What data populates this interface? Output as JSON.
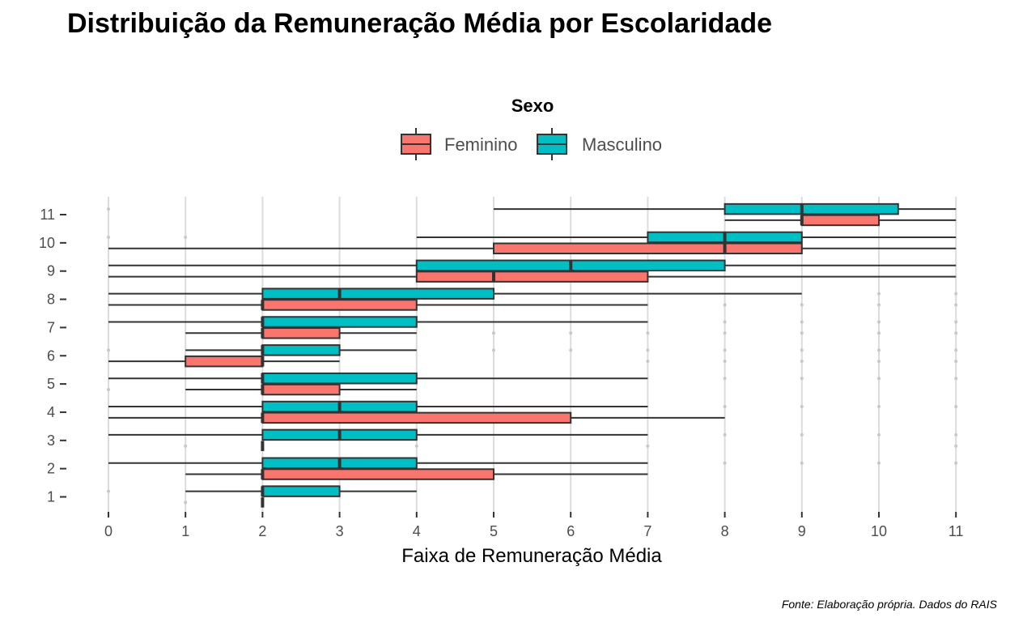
{
  "chart_data": {
    "type": "boxplot",
    "orientation": "horizontal",
    "title": "Distribuição da Remuneração Média por Escolaridade",
    "xlabel": "Faixa de Remuneração Média",
    "ylabel": "",
    "xlim": [
      0,
      11
    ],
    "x_ticks": [
      "0",
      "1",
      "2",
      "3",
      "4",
      "5",
      "6",
      "7",
      "8",
      "9",
      "10",
      "11"
    ],
    "categories": [
      "1",
      "2",
      "3",
      "4",
      "5",
      "6",
      "7",
      "8",
      "9",
      "10",
      "11"
    ],
    "legend": {
      "title": "Sexo",
      "position": "top"
    },
    "caption": "Fonte: Elaboração própria. Dados do RAIS",
    "grid": true,
    "series": [
      {
        "name": "Feminino",
        "color": "#F8766D",
        "boxes": [
          {
            "category": "1",
            "lower": 2,
            "q1": 2,
            "median": 2,
            "q3": 2,
            "upper": 2,
            "outliers": [
              1
            ]
          },
          {
            "category": "2",
            "lower": 1,
            "q1": 2,
            "median": 2,
            "q3": 5,
            "upper": 7,
            "outliers": []
          },
          {
            "category": "3",
            "lower": 2,
            "q1": 2,
            "median": 2,
            "q3": 2,
            "upper": 2,
            "outliers": [
              1,
              4,
              7,
              11
            ]
          },
          {
            "category": "4",
            "lower": 0,
            "q1": 2,
            "median": 2,
            "q3": 6,
            "upper": 8,
            "outliers": []
          },
          {
            "category": "5",
            "lower": 1,
            "q1": 2,
            "median": 2,
            "q3": 3,
            "upper": 4,
            "outliers": [
              0
            ]
          },
          {
            "category": "6",
            "lower": 0,
            "q1": 1,
            "median": 2,
            "q3": 2,
            "upper": 3,
            "outliers": [
              7,
              8,
              9,
              10,
              11
            ]
          },
          {
            "category": "7",
            "lower": 1,
            "q1": 2,
            "median": 2,
            "q3": 3,
            "upper": 4,
            "outliers": [
              5,
              6,
              7,
              8,
              9,
              10,
              11
            ]
          },
          {
            "category": "8",
            "lower": 0,
            "q1": 2,
            "median": 2,
            "q3": 4,
            "upper": 7,
            "outliers": [
              8,
              9,
              10,
              11
            ]
          },
          {
            "category": "9",
            "lower": 0,
            "q1": 4,
            "median": 5,
            "q3": 7,
            "upper": 11,
            "outliers": []
          },
          {
            "category": "10",
            "lower": 0,
            "q1": 5,
            "median": 8,
            "q3": 9,
            "upper": 11,
            "outliers": []
          },
          {
            "category": "11",
            "lower": 8,
            "q1": 9,
            "median": 9,
            "q3": 10,
            "upper": 11,
            "outliers": []
          }
        ]
      },
      {
        "name": "Masculino",
        "color": "#00BFC4",
        "boxes": [
          {
            "category": "1",
            "lower": 1,
            "q1": 2,
            "median": 2,
            "q3": 3,
            "upper": 4,
            "outliers": [
              0
            ]
          },
          {
            "category": "2",
            "lower": 0,
            "q1": 2,
            "median": 3,
            "q3": 4,
            "upper": 7,
            "outliers": [
              8,
              9,
              10,
              11
            ]
          },
          {
            "category": "3",
            "lower": 0,
            "q1": 2,
            "median": 3,
            "q3": 4,
            "upper": 7,
            "outliers": [
              8,
              9,
              10,
              11
            ]
          },
          {
            "category": "4",
            "lower": 0,
            "q1": 2,
            "median": 3,
            "q3": 4,
            "upper": 7,
            "outliers": [
              8,
              9,
              10,
              11
            ]
          },
          {
            "category": "5",
            "lower": 0,
            "q1": 2,
            "median": 2,
            "q3": 4,
            "upper": 7,
            "outliers": [
              8,
              9,
              10,
              11
            ]
          },
          {
            "category": "6",
            "lower": 1,
            "q1": 2,
            "median": 2,
            "q3": 3,
            "upper": 4,
            "outliers": [
              0,
              5,
              6,
              7,
              8,
              9,
              10,
              11
            ]
          },
          {
            "category": "7",
            "lower": 0,
            "q1": 2,
            "median": 2,
            "q3": 4,
            "upper": 7,
            "outliers": [
              8,
              9,
              10,
              11
            ]
          },
          {
            "category": "8",
            "lower": 0,
            "q1": 2,
            "median": 3,
            "q3": 5,
            "upper": 9,
            "outliers": [
              10,
              11
            ]
          },
          {
            "category": "9",
            "lower": 0,
            "q1": 4,
            "median": 6,
            "q3": 8,
            "upper": 11,
            "outliers": []
          },
          {
            "category": "10",
            "lower": 4,
            "q1": 7,
            "median": 8,
            "q3": 9,
            "upper": 11,
            "outliers": [
              0,
              1
            ]
          },
          {
            "category": "11",
            "lower": 5,
            "q1": 8,
            "median": 9,
            "q3": 10.25,
            "upper": 11,
            "outliers": [
              0
            ]
          }
        ]
      }
    ]
  }
}
